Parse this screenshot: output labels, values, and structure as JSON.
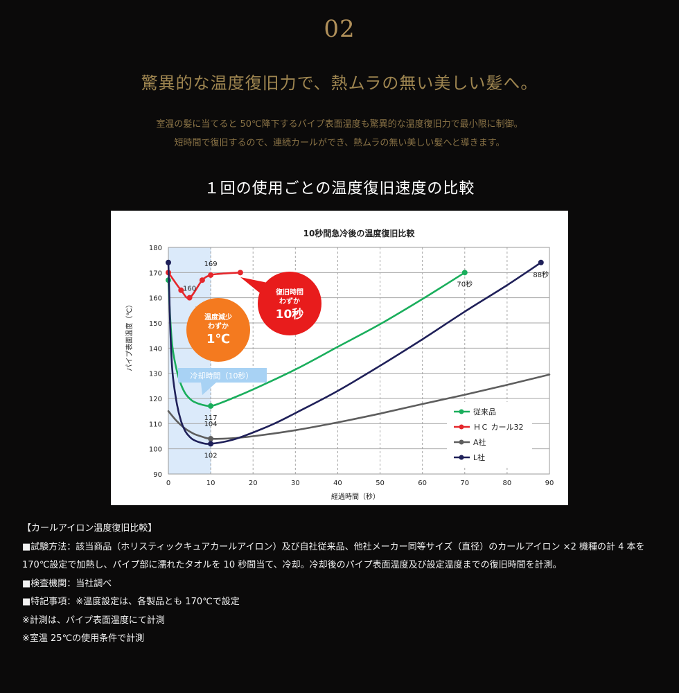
{
  "section_number": "02",
  "headline": "驚異的な温度復旧力で、熱ムラの無い美しい髪へ。",
  "lead_lines": [
    "室温の髪に当てると 50℃降下するパイプ表面温度も驚異的な温度復旧力で最小限に制御。",
    "短時間で復旧するので、連続カールができ、熱ムラの無い美しい髪へと導きます。"
  ],
  "chart_heading": "１回の使用ごとの温度復旧速度の比較",
  "chart_data": {
    "type": "line",
    "title": "10秒間急冷後の温度復旧比較",
    "xlabel": "経過時間（秒）",
    "ylabel": "パイプ表面温度（℃）",
    "xlim": [
      0,
      90
    ],
    "ylim": [
      90,
      180
    ],
    "x_ticks": [
      0,
      10,
      20,
      30,
      40,
      50,
      60,
      70,
      80,
      90
    ],
    "y_ticks": [
      90,
      100,
      110,
      120,
      130,
      140,
      150,
      160,
      170,
      180
    ],
    "grid": true,
    "legend_position": "bottom-right",
    "shaded_region": {
      "x": [
        0,
        10
      ],
      "label": "冷却時間（10秒）",
      "color": "#dbeafa"
    },
    "series": [
      {
        "name": "従来品",
        "color": "#1aae5c",
        "curve": [
          [
            0,
            167
          ],
          [
            0.5,
            150
          ],
          [
            1,
            140
          ],
          [
            2,
            131
          ],
          [
            3,
            125.5
          ],
          [
            4,
            122
          ],
          [
            5,
            120
          ],
          [
            6,
            118.7
          ],
          [
            8,
            117.5
          ],
          [
            10,
            117
          ],
          [
            12,
            118
          ],
          [
            15,
            120
          ],
          [
            20,
            123.6
          ],
          [
            30,
            131.5
          ],
          [
            40,
            140.5
          ],
          [
            50,
            149.5
          ],
          [
            60,
            159.5
          ],
          [
            70,
            170
          ]
        ],
        "markers": [
          [
            0,
            167
          ],
          [
            10,
            117
          ],
          [
            70,
            170
          ]
        ]
      },
      {
        "name": "ＨＣ カール32",
        "color": "#e5272c",
        "curve": [
          [
            0,
            170
          ],
          [
            3,
            163
          ],
          [
            5,
            160
          ],
          [
            8,
            167
          ],
          [
            10,
            169
          ],
          [
            12,
            169.5
          ],
          [
            17,
            170
          ]
        ],
        "markers": [
          [
            0,
            170
          ],
          [
            3,
            163
          ],
          [
            5,
            160
          ],
          [
            8,
            167
          ],
          [
            10,
            169
          ],
          [
            17,
            170
          ]
        ]
      },
      {
        "name": "A社",
        "color": "#5e5e5e",
        "curve": [
          [
            0,
            115
          ],
          [
            2,
            111
          ],
          [
            4,
            108
          ],
          [
            6,
            106
          ],
          [
            8,
            104.8
          ],
          [
            10,
            104
          ],
          [
            15,
            104.2
          ],
          [
            20,
            105
          ],
          [
            30,
            107.4
          ],
          [
            40,
            110.5
          ],
          [
            50,
            114
          ],
          [
            60,
            117.8
          ],
          [
            70,
            121.5
          ],
          [
            80,
            125.4
          ],
          [
            90,
            129.5
          ]
        ],
        "markers": [
          [
            10,
            104
          ]
        ]
      },
      {
        "name": "L社",
        "color": "#1f2059",
        "curve": [
          [
            0,
            174
          ],
          [
            0.25,
            160
          ],
          [
            0.5,
            145
          ],
          [
            1,
            130
          ],
          [
            2,
            118
          ],
          [
            3,
            111
          ],
          [
            4,
            107
          ],
          [
            5,
            104.8
          ],
          [
            6,
            103.5
          ],
          [
            8,
            102.3
          ],
          [
            10,
            102
          ],
          [
            15,
            103.5
          ],
          [
            20,
            106.5
          ],
          [
            25,
            110
          ],
          [
            30,
            114.2
          ],
          [
            40,
            123
          ],
          [
            50,
            133
          ],
          [
            60,
            143.5
          ],
          [
            70,
            154.5
          ],
          [
            80,
            165
          ],
          [
            88,
            174
          ]
        ],
        "markers": [
          [
            0,
            174
          ],
          [
            10,
            102
          ],
          [
            88,
            174
          ]
        ]
      }
    ],
    "point_labels": [
      {
        "text": "169",
        "x": 10,
        "y": 169
      },
      {
        "text": "160",
        "x": 5,
        "y": 160
      },
      {
        "text": "117",
        "x": 10,
        "y": 117
      },
      {
        "text": "104",
        "x": 10,
        "y": 104
      },
      {
        "text": "102",
        "x": 10,
        "y": 102
      },
      {
        "text": "70秒",
        "x": 70,
        "y": 170
      },
      {
        "text": "88秒",
        "x": 88,
        "y": 174
      }
    ],
    "callouts": [
      {
        "line1": "温度減少",
        "line2": "わずか",
        "big": "1℃",
        "color": "#f47a1f"
      },
      {
        "line1": "復旧時間",
        "line2": "わずか",
        "big": "10秒",
        "color": "#e81c1c"
      }
    ]
  },
  "notes": [
    "【カールアイロン温度復旧比較】",
    "■試験方法：該当商品（ホリスティックキュアカールアイロン）及び自社従来品、他社メーカー同等サイズ（直径）のカールアイロン ×2 機種の計 4 本を 170℃設定で加熱し、パイプ部に濡れたタオルを 10 秒間当て、冷却。冷却後のパイプ表面温度及び設定温度までの復旧時間を計測。",
    "■検査機関：当社調べ",
    "■特記事項：※温度設定は、各製品とも 170℃で設定",
    "※計測は、パイプ表面温度にて計測",
    "※室温 25℃の使用条件で計測"
  ]
}
